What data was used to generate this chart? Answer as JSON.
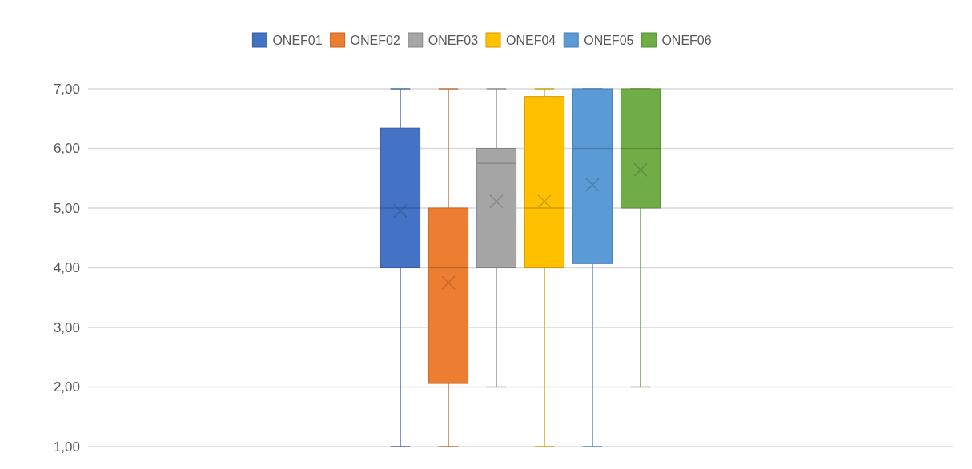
{
  "chart_data": {
    "type": "box",
    "categories": [
      null
    ],
    "series": [
      {
        "name": "ONEF01",
        "color": "#4472c4",
        "boxes": [
          {
            "low": 1,
            "q1": 4,
            "median": 5,
            "q3": 6.34,
            "high": 7,
            "mean": 4.95
          }
        ]
      },
      {
        "name": "ONEF02",
        "color": "#ed7d31",
        "boxes": [
          {
            "low": 1,
            "q1": 2.06,
            "median": 4,
            "q3": 5,
            "high": 7,
            "mean": 3.75
          }
        ]
      },
      {
        "name": "ONEF03",
        "color": "#a5a5a5",
        "boxes": [
          {
            "low": 2,
            "q1": 4,
            "median": 5.75,
            "q3": 6,
            "high": 7,
            "mean": 5.11
          }
        ]
      },
      {
        "name": "ONEF04",
        "color": "#ffc000",
        "boxes": [
          {
            "low": 1,
            "q1": 4,
            "median": 5,
            "q3": 6.87,
            "high": 7,
            "mean": 5.11
          }
        ]
      },
      {
        "name": "ONEF05",
        "color": "#5b9bd5",
        "boxes": [
          {
            "low": 1,
            "q1": 4.07,
            "median": 6,
            "q3": 7,
            "high": 7,
            "mean": 5.39
          }
        ]
      },
      {
        "name": "ONEF06",
        "color": "#70ad47",
        "boxes": [
          {
            "low": 2,
            "q1": 5,
            "median": 6,
            "q3": 7,
            "high": 7,
            "mean": 5.64
          }
        ]
      }
    ],
    "ylim": [
      1,
      7
    ],
    "yticks": [
      {
        "value": 1,
        "label": "1,00"
      },
      {
        "value": 2,
        "label": "2,00"
      },
      {
        "value": 3,
        "label": "3,00"
      },
      {
        "value": 4,
        "label": "4,00"
      },
      {
        "value": 5,
        "label": "5,00"
      },
      {
        "value": 6,
        "label": "6,00"
      },
      {
        "value": 7,
        "label": "7,00"
      }
    ],
    "grid": "y",
    "legend": "top"
  }
}
